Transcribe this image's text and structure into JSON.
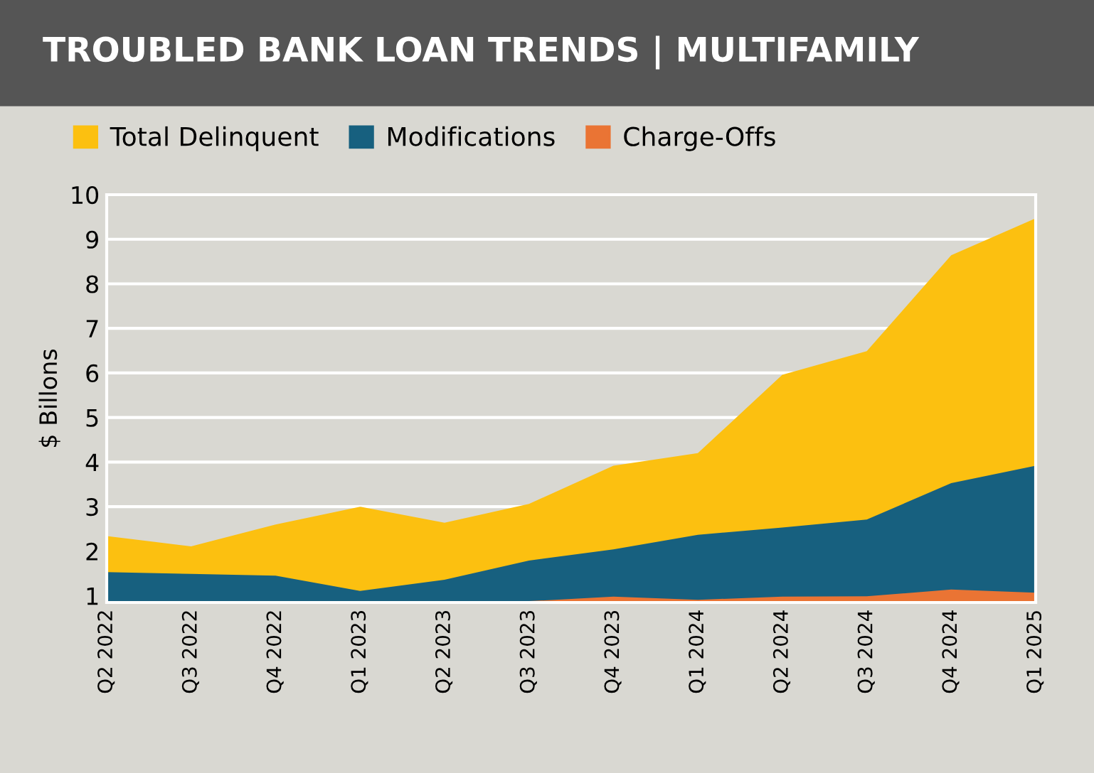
{
  "chart_data": {
    "type": "area",
    "title": "TROUBLED BANK LOAN TRENDS | MULTIFAMILY",
    "ylabel": "$ Billons",
    "categories": [
      "Q2 2022",
      "Q3 2022",
      "Q4 2022",
      "Q1 2023",
      "Q2 2023",
      "Q3 2023",
      "Q4 2023",
      "Q1 2024",
      "Q2 2024",
      "Q3 2024",
      "Q4 2024",
      "Q1 2025"
    ],
    "series": [
      {
        "name": "Total Delinquent",
        "color": "#fcc010",
        "values": [
          2.34,
          2.11,
          2.6,
          3.0,
          2.64,
          3.06,
          3.92,
          4.2,
          5.96,
          6.49,
          8.64,
          9.47
        ]
      },
      {
        "name": "Modifications",
        "color": "#17607f",
        "values": [
          1.53,
          1.49,
          1.45,
          1.11,
          1.36,
          1.79,
          2.04,
          2.37,
          2.53,
          2.71,
          3.53,
          3.92
        ]
      },
      {
        "name": "Charge-Offs",
        "color": "#ea7434",
        "values": [
          0.86,
          0.86,
          0.86,
          0.86,
          0.86,
          0.88,
          0.98,
          0.91,
          0.98,
          0.99,
          1.14,
          1.07
        ]
      }
    ],
    "ylim": [
      0.85,
      10
    ],
    "yticks": [
      1,
      2,
      3,
      4,
      5,
      6,
      7,
      8,
      9,
      10
    ],
    "grid": "y",
    "legend": "top"
  }
}
